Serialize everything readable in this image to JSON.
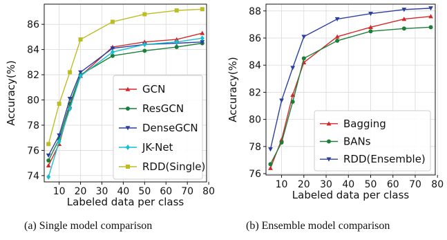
{
  "chart_data": [
    {
      "type": "line",
      "caption": "(a) Single model comparison",
      "xlabel": "Labeled data per class",
      "ylabel": "Accuracy(%)",
      "xlim": [
        3,
        79
      ],
      "ylim": [
        73.5,
        87.6
      ],
      "xticks": [
        10,
        20,
        30,
        40,
        50,
        60,
        70,
        80
      ],
      "yticks": [
        74,
        76,
        78,
        80,
        82,
        84,
        86
      ],
      "grid": true,
      "legend": "lower-right",
      "x": [
        5,
        10,
        15,
        20,
        35,
        50,
        65,
        77
      ],
      "series": [
        {
          "name": "GCN",
          "color": "#d62728",
          "marker": "triangle-up",
          "values": [
            74.8,
            76.5,
            79.5,
            81.9,
            84.2,
            84.6,
            84.8,
            85.3
          ]
        },
        {
          "name": "ResGCN",
          "color": "#1a7f37",
          "marker": "circle",
          "values": [
            75.2,
            76.9,
            79.7,
            82.0,
            83.5,
            83.9,
            84.2,
            84.5
          ]
        },
        {
          "name": "DenseGCN",
          "color": "#2b3fa0",
          "marker": "triangle-down",
          "values": [
            75.6,
            77.2,
            80.1,
            82.2,
            84.1,
            84.4,
            84.5,
            84.6
          ]
        },
        {
          "name": "JK-Net",
          "color": "#17becf",
          "marker": "diamond",
          "values": [
            73.9,
            76.7,
            79.3,
            81.9,
            83.8,
            84.4,
            84.6,
            84.9
          ]
        },
        {
          "name": "RDD(Single)",
          "color": "#bcbd22",
          "marker": "square",
          "values": [
            76.5,
            79.7,
            82.2,
            84.8,
            86.2,
            86.8,
            87.1,
            87.2
          ]
        }
      ]
    },
    {
      "type": "line",
      "caption": "(b) Ensemble model comparison",
      "xlabel": "Labeled data per class",
      "ylabel": "Accuracy(%)",
      "xlim": [
        3,
        79
      ],
      "ylim": [
        75.9,
        88.5
      ],
      "xticks": [
        10,
        20,
        30,
        40,
        50,
        60,
        70,
        80
      ],
      "yticks": [
        76,
        78,
        80,
        82,
        84,
        86,
        88
      ],
      "grid": true,
      "legend": "lower-right",
      "x": [
        5,
        10,
        15,
        20,
        35,
        50,
        65,
        77
      ],
      "series": [
        {
          "name": "Bagging",
          "color": "#d62728",
          "marker": "triangle-up",
          "values": [
            76.4,
            78.5,
            81.8,
            84.2,
            86.1,
            86.8,
            87.4,
            87.6
          ]
        },
        {
          "name": "BANs",
          "color": "#1a7f37",
          "marker": "circle",
          "values": [
            76.7,
            78.3,
            81.3,
            84.5,
            85.8,
            86.5,
            86.7,
            86.8
          ]
        },
        {
          "name": "RDD(Ensemble)",
          "color": "#2b3fa0",
          "marker": "triangle-down",
          "values": [
            77.8,
            81.4,
            83.8,
            86.1,
            87.4,
            87.8,
            88.1,
            88.2
          ]
        }
      ]
    }
  ]
}
